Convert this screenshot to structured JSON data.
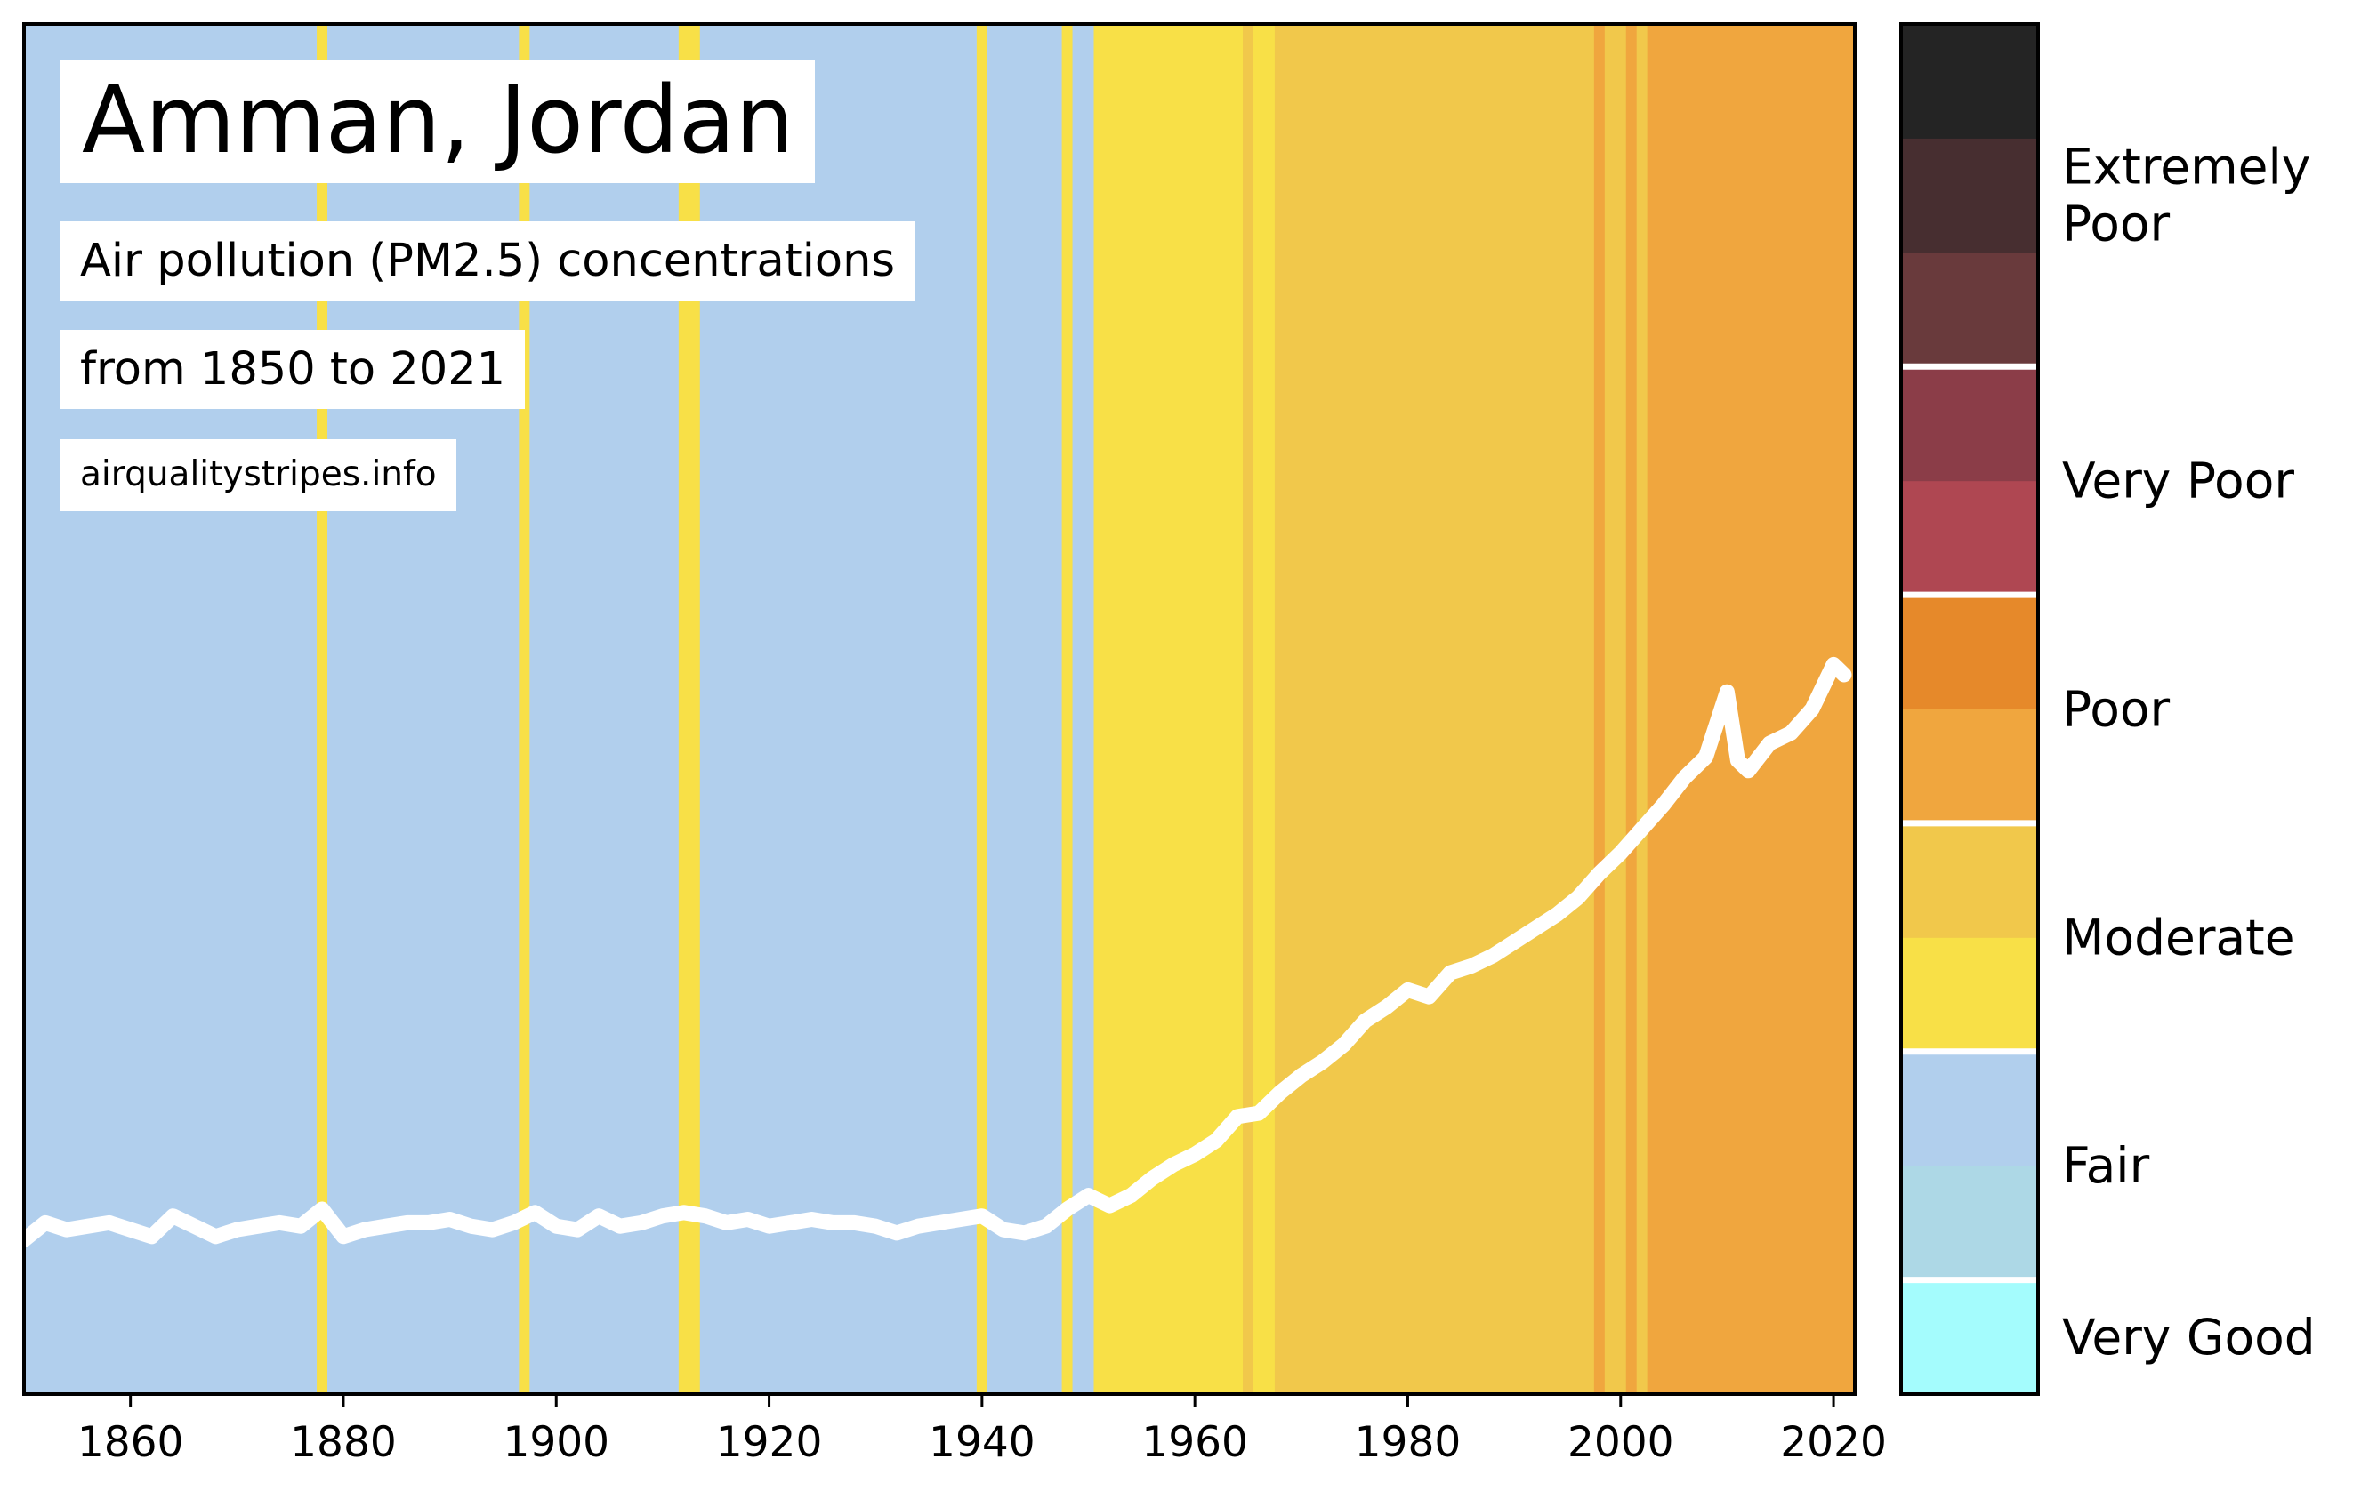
{
  "chart_data": {
    "type": "area",
    "title": "Amman, Jordan",
    "subtitle": "Air pollution (PM2.5) concentrations",
    "period_label": "from 1850 to 2021",
    "source": "airqualitystripes.info",
    "x_ticks": [
      1860,
      1880,
      1900,
      1920,
      1940,
      1960,
      1980,
      2000,
      2020
    ],
    "xlim": [
      1850,
      2022
    ],
    "stripes": [
      {
        "from": 1850,
        "to": 1877.5,
        "color": "#b1cfed"
      },
      {
        "from": 1877.5,
        "to": 1878.5,
        "color": "#f8e047"
      },
      {
        "from": 1878.5,
        "to": 1896.5,
        "color": "#b1cfed"
      },
      {
        "from": 1896.5,
        "to": 1897.5,
        "color": "#f8e047"
      },
      {
        "from": 1897.5,
        "to": 1911.5,
        "color": "#b1cfed"
      },
      {
        "from": 1911.5,
        "to": 1913.5,
        "color": "#f8e047"
      },
      {
        "from": 1913.5,
        "to": 1939.5,
        "color": "#b1cfed"
      },
      {
        "from": 1939.5,
        "to": 1940.5,
        "color": "#f8e047"
      },
      {
        "from": 1940.5,
        "to": 1947.5,
        "color": "#b1cfed"
      },
      {
        "from": 1947.5,
        "to": 1948.5,
        "color": "#f8e047"
      },
      {
        "from": 1948.5,
        "to": 1950.5,
        "color": "#b1cfed"
      },
      {
        "from": 1950.5,
        "to": 1964.5,
        "color": "#f8e047"
      },
      {
        "from": 1964.5,
        "to": 1965.5,
        "color": "#f1c84b"
      },
      {
        "from": 1965.5,
        "to": 1967.5,
        "color": "#f8e047"
      },
      {
        "from": 1967.5,
        "to": 1997.5,
        "color": "#f1c84b"
      },
      {
        "from": 1997.5,
        "to": 1998.5,
        "color": "#f0a63e"
      },
      {
        "from": 1998.5,
        "to": 2000.5,
        "color": "#f1c84b"
      },
      {
        "from": 2000.5,
        "to": 2001.5,
        "color": "#f0a63e"
      },
      {
        "from": 2001.5,
        "to": 2002.5,
        "color": "#f1c84b"
      },
      {
        "from": 2002.5,
        "to": 2022,
        "color": "#f0a63e"
      }
    ],
    "series": [
      {
        "line_color": "#ffffff",
        "x": [
          1850,
          1852,
          1854,
          1856,
          1858,
          1860,
          1862,
          1864,
          1866,
          1868,
          1870,
          1872,
          1874,
          1876,
          1878,
          1880,
          1882,
          1884,
          1886,
          1888,
          1890,
          1892,
          1894,
          1896,
          1898,
          1900,
          1902,
          1904,
          1906,
          1908,
          1910,
          1912,
          1914,
          1916,
          1918,
          1920,
          1922,
          1924,
          1926,
          1928,
          1930,
          1932,
          1934,
          1936,
          1938,
          1940,
          1942,
          1944,
          1946,
          1948,
          1950,
          1952,
          1954,
          1956,
          1958,
          1960,
          1962,
          1964,
          1966,
          1968,
          1970,
          1972,
          1974,
          1976,
          1978,
          1980,
          1982,
          1984,
          1986,
          1988,
          1990,
          1992,
          1994,
          1996,
          1998,
          2000,
          2002,
          2004,
          2006,
          2008,
          2010,
          2011,
          2012,
          2014,
          2016,
          2018,
          2020,
          2021
        ],
        "y": [
          0.045,
          0.05,
          0.048,
          0.049,
          0.05,
          0.048,
          0.046,
          0.052,
          0.049,
          0.046,
          0.048,
          0.049,
          0.05,
          0.049,
          0.054,
          0.046,
          0.048,
          0.049,
          0.05,
          0.05,
          0.051,
          0.049,
          0.048,
          0.05,
          0.053,
          0.049,
          0.048,
          0.052,
          0.049,
          0.05,
          0.052,
          0.053,
          0.052,
          0.05,
          0.051,
          0.049,
          0.05,
          0.051,
          0.05,
          0.05,
          0.049,
          0.047,
          0.049,
          0.05,
          0.051,
          0.052,
          0.048,
          0.047,
          0.049,
          0.054,
          0.058,
          0.055,
          0.058,
          0.063,
          0.067,
          0.07,
          0.074,
          0.081,
          0.082,
          0.088,
          0.093,
          0.097,
          0.102,
          0.109,
          0.113,
          0.118,
          0.116,
          0.123,
          0.125,
          0.128,
          0.132,
          0.136,
          0.14,
          0.145,
          0.152,
          0.158,
          0.165,
          0.172,
          0.18,
          0.186,
          0.205,
          0.185,
          0.182,
          0.19,
          0.193,
          0.2,
          0.213,
          0.21
        ]
      }
    ],
    "colorbar": {
      "segments": [
        "#a4fcfd",
        "#add8e6",
        "#b1cfed",
        "#f8e047",
        "#f1c84b",
        "#f0a63e",
        "#e6892a",
        "#af4752",
        "#8b3d48",
        "#693a3c",
        "#472e30",
        "#242424"
      ],
      "labels": [
        "Very Good",
        "Fair",
        "Moderate",
        "Poor",
        "Very Poor",
        "Extremely Poor"
      ]
    }
  }
}
